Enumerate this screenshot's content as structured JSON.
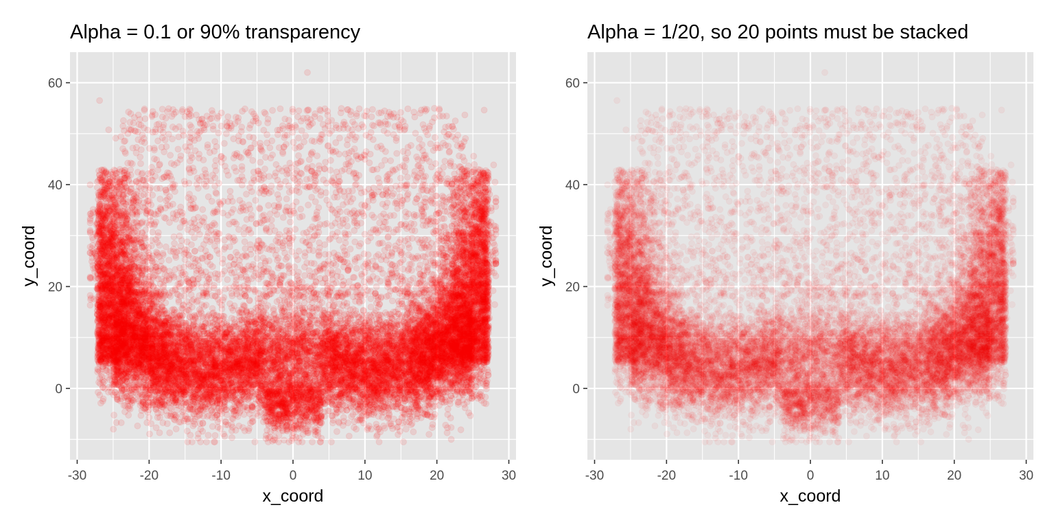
{
  "chart_data": [
    {
      "type": "scatter",
      "title": "Alpha = 0.1 or 90% transparency",
      "xlabel": "x_coord",
      "ylabel": "y_coord",
      "xlim": [
        -31,
        31
      ],
      "ylim": [
        -14,
        66
      ],
      "x_ticks": [
        -30,
        -20,
        -10,
        0,
        10,
        20,
        30
      ],
      "y_ticks": [
        0,
        20,
        40,
        60
      ],
      "x_tick_labels": [
        "-30",
        "-20",
        "-10",
        "0",
        "10",
        "20",
        "30"
      ],
      "y_tick_labels": [
        "0",
        "20",
        "40",
        "60"
      ],
      "grid": true,
      "point_color": "#ff0000",
      "point_alpha": 0.1,
      "series": [
        {
          "approx_points": 20000,
          "x_range": [
            -28,
            28
          ],
          "y_range": [
            -10,
            62
          ],
          "density_summary": [
            {
              "region": "left wall",
              "x": [
                -28,
                -22
              ],
              "y": [
                -4,
                45
              ],
              "density": "very high"
            },
            {
              "region": "right wall",
              "x": [
                22,
                28
              ],
              "y": [
                -4,
                42
              ],
              "density": "very high"
            },
            {
              "region": "bottom band",
              "x": [
                -22,
                22
              ],
              "y": [
                -9,
                18
              ],
              "density": "very high"
            },
            {
              "region": "central trough",
              "x": [
                -4,
                4
              ],
              "y": [
                -8,
                2
              ],
              "density": "medium"
            },
            {
              "region": "upper interior",
              "x": [
                -22,
                22
              ],
              "y": [
                20,
                56
              ],
              "density": "sparse"
            }
          ],
          "extreme_points": [
            {
              "x": 2,
              "y": 62
            },
            {
              "x": 22,
              "y": -10
            }
          ]
        }
      ]
    },
    {
      "type": "scatter",
      "title": "Alpha = 1/20, so 20 points must be stacked",
      "xlabel": "x_coord",
      "ylabel": "y_coord",
      "xlim": [
        -31,
        31
      ],
      "ylim": [
        -14,
        66
      ],
      "x_ticks": [
        -30,
        -20,
        -10,
        0,
        10,
        20,
        30
      ],
      "y_ticks": [
        0,
        20,
        40,
        60
      ],
      "x_tick_labels": [
        "-30",
        "-20",
        "-10",
        "0",
        "10",
        "20",
        "30"
      ],
      "y_tick_labels": [
        "0",
        "20",
        "40",
        "60"
      ],
      "grid": true,
      "point_color": "#ff0000",
      "point_alpha": 0.05,
      "series": [
        {
          "approx_points": 20000,
          "x_range": [
            -28,
            28
          ],
          "y_range": [
            -10,
            62
          ],
          "same_data_as_left_panel": true
        }
      ]
    }
  ],
  "colors": {
    "panel_background": "#e5e5e5",
    "gridline": "#ffffff",
    "tick_text": "#4d4d4d",
    "axis_tick": "#333333",
    "point": "#ff0000"
  }
}
